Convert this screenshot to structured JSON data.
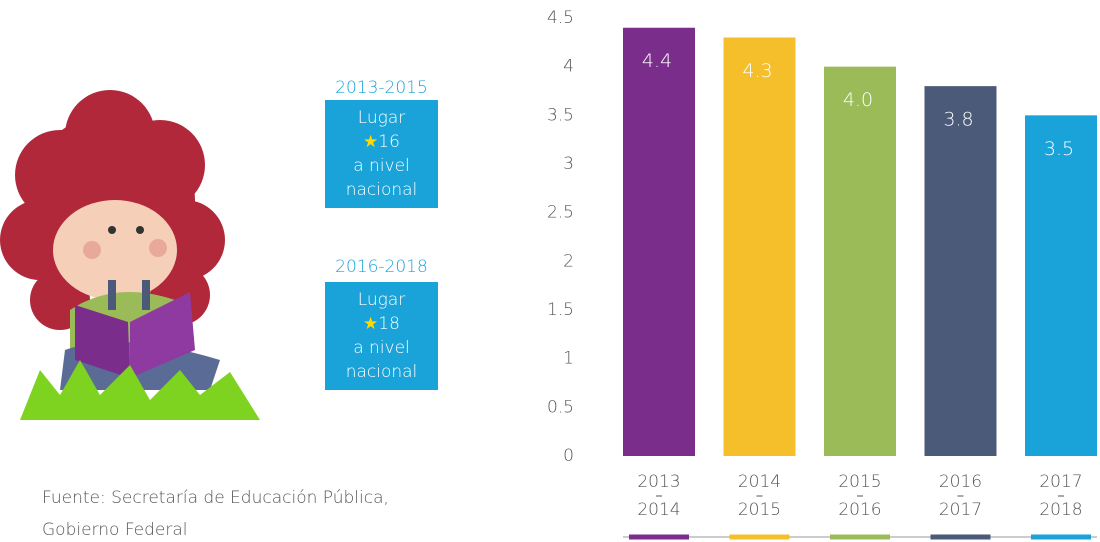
{
  "chart_data": {
    "type": "bar",
    "categories": [
      [
        "2013",
        "2014"
      ],
      [
        "2014",
        "2015"
      ],
      [
        "2015",
        "2016"
      ],
      [
        "2016",
        "2017"
      ],
      [
        "2017",
        "2018"
      ]
    ],
    "values": [
      4.4,
      4.3,
      4.0,
      3.8,
      3.5
    ],
    "value_labels": [
      "4.4",
      "4.3",
      "4.0",
      "3.8",
      "3.5"
    ],
    "colors": [
      "#7b2d8b",
      "#f4bf2a",
      "#9bbb59",
      "#4a5a78",
      "#1aa3d9"
    ],
    "ylim": [
      0,
      4.5
    ],
    "yticks": [
      0,
      0.5,
      1,
      1.5,
      2,
      2.5,
      3,
      3.5,
      4,
      4.5
    ]
  },
  "ranks": [
    {
      "period": "2013-2015",
      "line1": "Lugar",
      "rank": "16",
      "line3": "a nivel",
      "line4": "nacional"
    },
    {
      "period": "2016-2018",
      "line1": "Lugar",
      "rank": "18",
      "line3": "a nivel",
      "line4": "nacional"
    }
  ],
  "source": {
    "line1": "Fuente: Secretaría de Educación Pública,",
    "line2": "Gobierno Federal"
  }
}
